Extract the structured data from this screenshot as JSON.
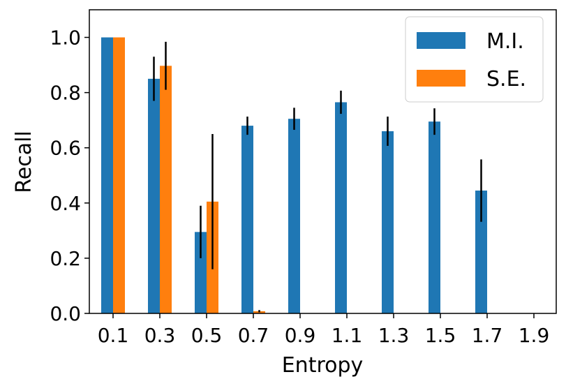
{
  "chart_data": {
    "type": "bar",
    "title": "",
    "xlabel": "Entropy",
    "ylabel": "Recall",
    "ylim": [
      0,
      1.1
    ],
    "yticks": [
      "0.0",
      "0.2",
      "0.4",
      "0.6",
      "0.8",
      "1.0"
    ],
    "categories": [
      "0.1",
      "0.3",
      "0.5",
      "0.7",
      "0.9",
      "1.1",
      "1.3",
      "1.5",
      "1.7",
      "1.9"
    ],
    "grid": false,
    "legend_position": "top-right",
    "series": [
      {
        "name": "M.I.",
        "color": "#1f77b4",
        "values": [
          1.0,
          0.85,
          0.295,
          0.68,
          0.705,
          0.765,
          0.66,
          0.695,
          0.445,
          0
        ],
        "errors": [
          0,
          0.08,
          0.095,
          0.033,
          0.04,
          0.042,
          0.053,
          0.048,
          0.113,
          0
        ]
      },
      {
        "name": "S.E.",
        "color": "#ff7f0e",
        "values": [
          1.0,
          0.897,
          0.405,
          0.008,
          0,
          0,
          0,
          0,
          0,
          0
        ],
        "errors": [
          0,
          0.087,
          0.245,
          0.004,
          0,
          0,
          0,
          0,
          0,
          0
        ]
      }
    ]
  }
}
